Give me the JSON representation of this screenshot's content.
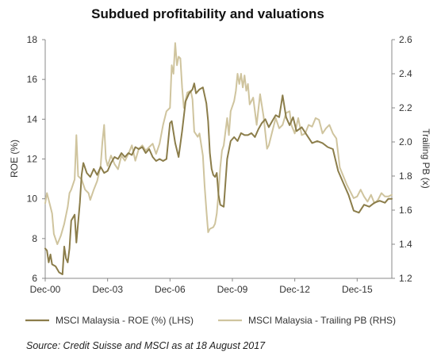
{
  "chart_data": {
    "type": "line",
    "title": "Subdued profitability and valuations",
    "ylabel_left": "ROE (%)",
    "ylabel_right": "Trailing PB (x)",
    "xlabel": "",
    "x_tick_labels": [
      "Dec-00",
      "Dec-03",
      "Dec-06",
      "Dec-09",
      "Dec-12",
      "Dec-15"
    ],
    "x_range": [
      "2000-12",
      "2017-08"
    ],
    "y_left_ticks": [
      "6",
      "8",
      "10",
      "12",
      "14",
      "16",
      "18"
    ],
    "y_left_range": [
      6,
      18
    ],
    "y_right_ticks": [
      "1.2",
      "1.4",
      "1.6",
      "1.8",
      "2.0",
      "2.2",
      "2.4",
      "2.6"
    ],
    "y_right_range": [
      1.2,
      2.6
    ],
    "grid": false,
    "legend_position": "bottom",
    "series": [
      {
        "name": "MSCI Malaysia - ROE (%) (LHS)",
        "axis": "left",
        "color": "#8b7d4a",
        "points": [
          [
            "2000-12",
            7.5
          ],
          [
            "2001-01",
            7.4
          ],
          [
            "2001-02",
            6.8
          ],
          [
            "2001-03",
            7.2
          ],
          [
            "2001-04",
            6.7
          ],
          [
            "2001-06",
            6.6
          ],
          [
            "2001-08",
            6.3
          ],
          [
            "2001-10",
            6.2
          ],
          [
            "2001-11",
            7.6
          ],
          [
            "2001-12",
            7.0
          ],
          [
            "2002-01",
            6.8
          ],
          [
            "2002-02",
            7.5
          ],
          [
            "2002-03",
            8.9
          ],
          [
            "2002-05",
            9.2
          ],
          [
            "2002-06",
            7.8
          ],
          [
            "2002-08",
            9.8
          ],
          [
            "2002-09",
            11.2
          ],
          [
            "2002-10",
            11.8
          ],
          [
            "2002-12",
            11.3
          ],
          [
            "2003-02",
            11.1
          ],
          [
            "2003-04",
            11.5
          ],
          [
            "2003-06",
            11.2
          ],
          [
            "2003-08",
            11.6
          ],
          [
            "2003-10",
            11.3
          ],
          [
            "2003-12",
            11.4
          ],
          [
            "2004-02",
            11.8
          ],
          [
            "2004-04",
            12.1
          ],
          [
            "2004-06",
            12.0
          ],
          [
            "2004-08",
            12.3
          ],
          [
            "2004-10",
            12.1
          ],
          [
            "2004-12",
            12.3
          ],
          [
            "2005-02",
            12.2
          ],
          [
            "2005-04",
            12.6
          ],
          [
            "2005-06",
            12.5
          ],
          [
            "2005-08",
            12.6
          ],
          [
            "2005-10",
            12.3
          ],
          [
            "2005-12",
            12.5
          ],
          [
            "2006-02",
            12.1
          ],
          [
            "2006-04",
            11.9
          ],
          [
            "2006-06",
            12.0
          ],
          [
            "2006-08",
            11.9
          ],
          [
            "2006-10",
            12.0
          ],
          [
            "2006-12",
            13.8
          ],
          [
            "2007-01",
            13.9
          ],
          [
            "2007-03",
            12.8
          ],
          [
            "2007-05",
            12.1
          ],
          [
            "2007-07",
            13.4
          ],
          [
            "2007-09",
            14.9
          ],
          [
            "2007-11",
            15.3
          ],
          [
            "2008-01",
            15.5
          ],
          [
            "2008-02",
            15.8
          ],
          [
            "2008-03",
            15.3
          ],
          [
            "2008-05",
            15.5
          ],
          [
            "2008-07",
            15.6
          ],
          [
            "2008-09",
            14.8
          ],
          [
            "2008-10",
            13.9
          ],
          [
            "2008-11",
            12.3
          ],
          [
            "2008-12",
            11.5
          ],
          [
            "2009-01",
            11.2
          ],
          [
            "2009-02",
            11.1
          ],
          [
            "2009-03",
            11.3
          ],
          [
            "2009-04",
            10.2
          ],
          [
            "2009-05",
            9.7
          ],
          [
            "2009-07",
            9.6
          ],
          [
            "2009-09",
            12.0
          ],
          [
            "2009-11",
            12.9
          ],
          [
            "2010-01",
            13.1
          ],
          [
            "2010-03",
            12.9
          ],
          [
            "2010-05",
            13.3
          ],
          [
            "2010-07",
            13.2
          ],
          [
            "2010-09",
            13.2
          ],
          [
            "2010-11",
            13.3
          ],
          [
            "2011-01",
            13.1
          ],
          [
            "2011-03",
            13.5
          ],
          [
            "2011-05",
            13.8
          ],
          [
            "2011-07",
            14.0
          ],
          [
            "2011-09",
            13.6
          ],
          [
            "2011-11",
            13.9
          ],
          [
            "2012-01",
            14.2
          ],
          [
            "2012-03",
            14.1
          ],
          [
            "2012-05",
            15.2
          ],
          [
            "2012-07",
            14.1
          ],
          [
            "2012-09",
            13.7
          ],
          [
            "2012-11",
            14.1
          ],
          [
            "2013-01",
            13.4
          ],
          [
            "2013-04",
            13.6
          ],
          [
            "2013-07",
            13.2
          ],
          [
            "2013-10",
            12.8
          ],
          [
            "2014-01",
            12.9
          ],
          [
            "2014-04",
            12.8
          ],
          [
            "2014-07",
            12.6
          ],
          [
            "2014-10",
            12.5
          ],
          [
            "2015-01",
            11.4
          ],
          [
            "2015-04",
            10.8
          ],
          [
            "2015-07",
            10.2
          ],
          [
            "2015-10",
            9.4
          ],
          [
            "2016-01",
            9.3
          ],
          [
            "2016-04",
            9.7
          ],
          [
            "2016-07",
            9.6
          ],
          [
            "2016-10",
            9.8
          ],
          [
            "2017-01",
            9.9
          ],
          [
            "2017-04",
            9.8
          ],
          [
            "2017-06",
            10.0
          ],
          [
            "2017-08",
            10.0
          ]
        ]
      },
      {
        "name": "MSCI Malaysia - Trailing PB (RHS)",
        "axis": "right",
        "color": "#cfc49e",
        "points": [
          [
            "2000-12",
            1.64
          ],
          [
            "2001-01",
            1.7
          ],
          [
            "2001-02",
            1.66
          ],
          [
            "2001-04",
            1.58
          ],
          [
            "2001-05",
            1.46
          ],
          [
            "2001-07",
            1.4
          ],
          [
            "2001-09",
            1.45
          ],
          [
            "2001-11",
            1.52
          ],
          [
            "2002-01",
            1.62
          ],
          [
            "2002-02",
            1.7
          ],
          [
            "2002-03",
            1.72
          ],
          [
            "2002-05",
            1.78
          ],
          [
            "2002-06",
            2.04
          ],
          [
            "2002-07",
            1.8
          ],
          [
            "2002-09",
            1.78
          ],
          [
            "2002-11",
            1.72
          ],
          [
            "2003-01",
            1.7
          ],
          [
            "2003-02",
            1.66
          ],
          [
            "2003-04",
            1.72
          ],
          [
            "2003-06",
            1.77
          ],
          [
            "2003-08",
            1.86
          ],
          [
            "2003-09",
            2.0
          ],
          [
            "2003-10",
            2.1
          ],
          [
            "2003-11",
            1.9
          ],
          [
            "2003-12",
            1.86
          ],
          [
            "2004-02",
            1.92
          ],
          [
            "2004-04",
            1.87
          ],
          [
            "2004-06",
            1.84
          ],
          [
            "2004-08",
            1.92
          ],
          [
            "2004-10",
            1.89
          ],
          [
            "2004-12",
            1.93
          ],
          [
            "2005-02",
            1.98
          ],
          [
            "2005-04",
            1.89
          ],
          [
            "2005-06",
            1.96
          ],
          [
            "2005-08",
            1.98
          ],
          [
            "2005-10",
            1.95
          ],
          [
            "2005-12",
            1.97
          ],
          [
            "2006-02",
            1.99
          ],
          [
            "2006-04",
            1.93
          ],
          [
            "2006-06",
            1.99
          ],
          [
            "2006-08",
            2.1
          ],
          [
            "2006-10",
            2.18
          ],
          [
            "2006-12",
            2.2
          ],
          [
            "2007-01",
            2.45
          ],
          [
            "2007-02",
            2.4
          ],
          [
            "2007-03",
            2.58
          ],
          [
            "2007-04",
            2.45
          ],
          [
            "2007-05",
            2.5
          ],
          [
            "2007-06",
            2.49
          ],
          [
            "2007-07",
            2.32
          ],
          [
            "2007-08",
            2.2
          ],
          [
            "2007-10",
            2.29
          ],
          [
            "2007-12",
            2.3
          ],
          [
            "2008-01",
            2.25
          ],
          [
            "2008-02",
            2.06
          ],
          [
            "2008-04",
            2.03
          ],
          [
            "2008-05",
            2.05
          ],
          [
            "2008-07",
            1.92
          ],
          [
            "2008-08",
            1.74
          ],
          [
            "2008-09",
            1.6
          ],
          [
            "2008-10",
            1.47
          ],
          [
            "2008-11",
            1.49
          ],
          [
            "2009-01",
            1.5
          ],
          [
            "2009-02",
            1.52
          ],
          [
            "2009-03",
            1.58
          ],
          [
            "2009-04",
            1.7
          ],
          [
            "2009-05",
            1.85
          ],
          [
            "2009-06",
            1.95
          ],
          [
            "2009-07",
            1.98
          ],
          [
            "2009-09",
            2.14
          ],
          [
            "2009-10",
            2.04
          ],
          [
            "2009-11",
            2.18
          ],
          [
            "2010-01",
            2.24
          ],
          [
            "2010-02",
            2.3
          ],
          [
            "2010-03",
            2.4
          ],
          [
            "2010-04",
            2.34
          ],
          [
            "2010-05",
            2.4
          ],
          [
            "2010-06",
            2.32
          ],
          [
            "2010-07",
            2.39
          ],
          [
            "2010-08",
            2.3
          ],
          [
            "2010-09",
            2.34
          ],
          [
            "2010-10",
            2.22
          ],
          [
            "2010-12",
            2.26
          ],
          [
            "2011-02",
            2.1
          ],
          [
            "2011-04",
            2.28
          ],
          [
            "2011-06",
            2.15
          ],
          [
            "2011-08",
            1.96
          ],
          [
            "2011-09",
            1.98
          ],
          [
            "2011-11",
            2.06
          ],
          [
            "2012-01",
            2.14
          ],
          [
            "2012-03",
            2.08
          ],
          [
            "2012-05",
            2.1
          ],
          [
            "2012-07",
            2.17
          ],
          [
            "2012-09",
            2.18
          ],
          [
            "2012-10",
            2.1
          ],
          [
            "2012-12",
            2.05
          ],
          [
            "2013-02",
            2.14
          ],
          [
            "2013-04",
            2.04
          ],
          [
            "2013-06",
            2.05
          ],
          [
            "2013-08",
            2.1
          ],
          [
            "2013-10",
            2.09
          ],
          [
            "2013-12",
            2.14
          ],
          [
            "2014-02",
            2.13
          ],
          [
            "2014-04",
            2.05
          ],
          [
            "2014-06",
            2.08
          ],
          [
            "2014-08",
            2.1
          ],
          [
            "2014-10",
            2.05
          ],
          [
            "2014-12",
            2.02
          ],
          [
            "2015-02",
            1.85
          ],
          [
            "2015-04",
            1.8
          ],
          [
            "2015-06",
            1.75
          ],
          [
            "2015-08",
            1.71
          ],
          [
            "2015-10",
            1.67
          ],
          [
            "2015-12",
            1.68
          ],
          [
            "2016-02",
            1.72
          ],
          [
            "2016-04",
            1.68
          ],
          [
            "2016-06",
            1.65
          ],
          [
            "2016-08",
            1.69
          ],
          [
            "2016-10",
            1.64
          ],
          [
            "2016-12",
            1.66
          ],
          [
            "2017-02",
            1.7
          ],
          [
            "2017-04",
            1.68
          ],
          [
            "2017-06",
            1.68
          ],
          [
            "2017-08",
            1.69
          ]
        ]
      }
    ],
    "source_note": "Source: Credit Suisse and MSCI as at 18 August 2017"
  }
}
